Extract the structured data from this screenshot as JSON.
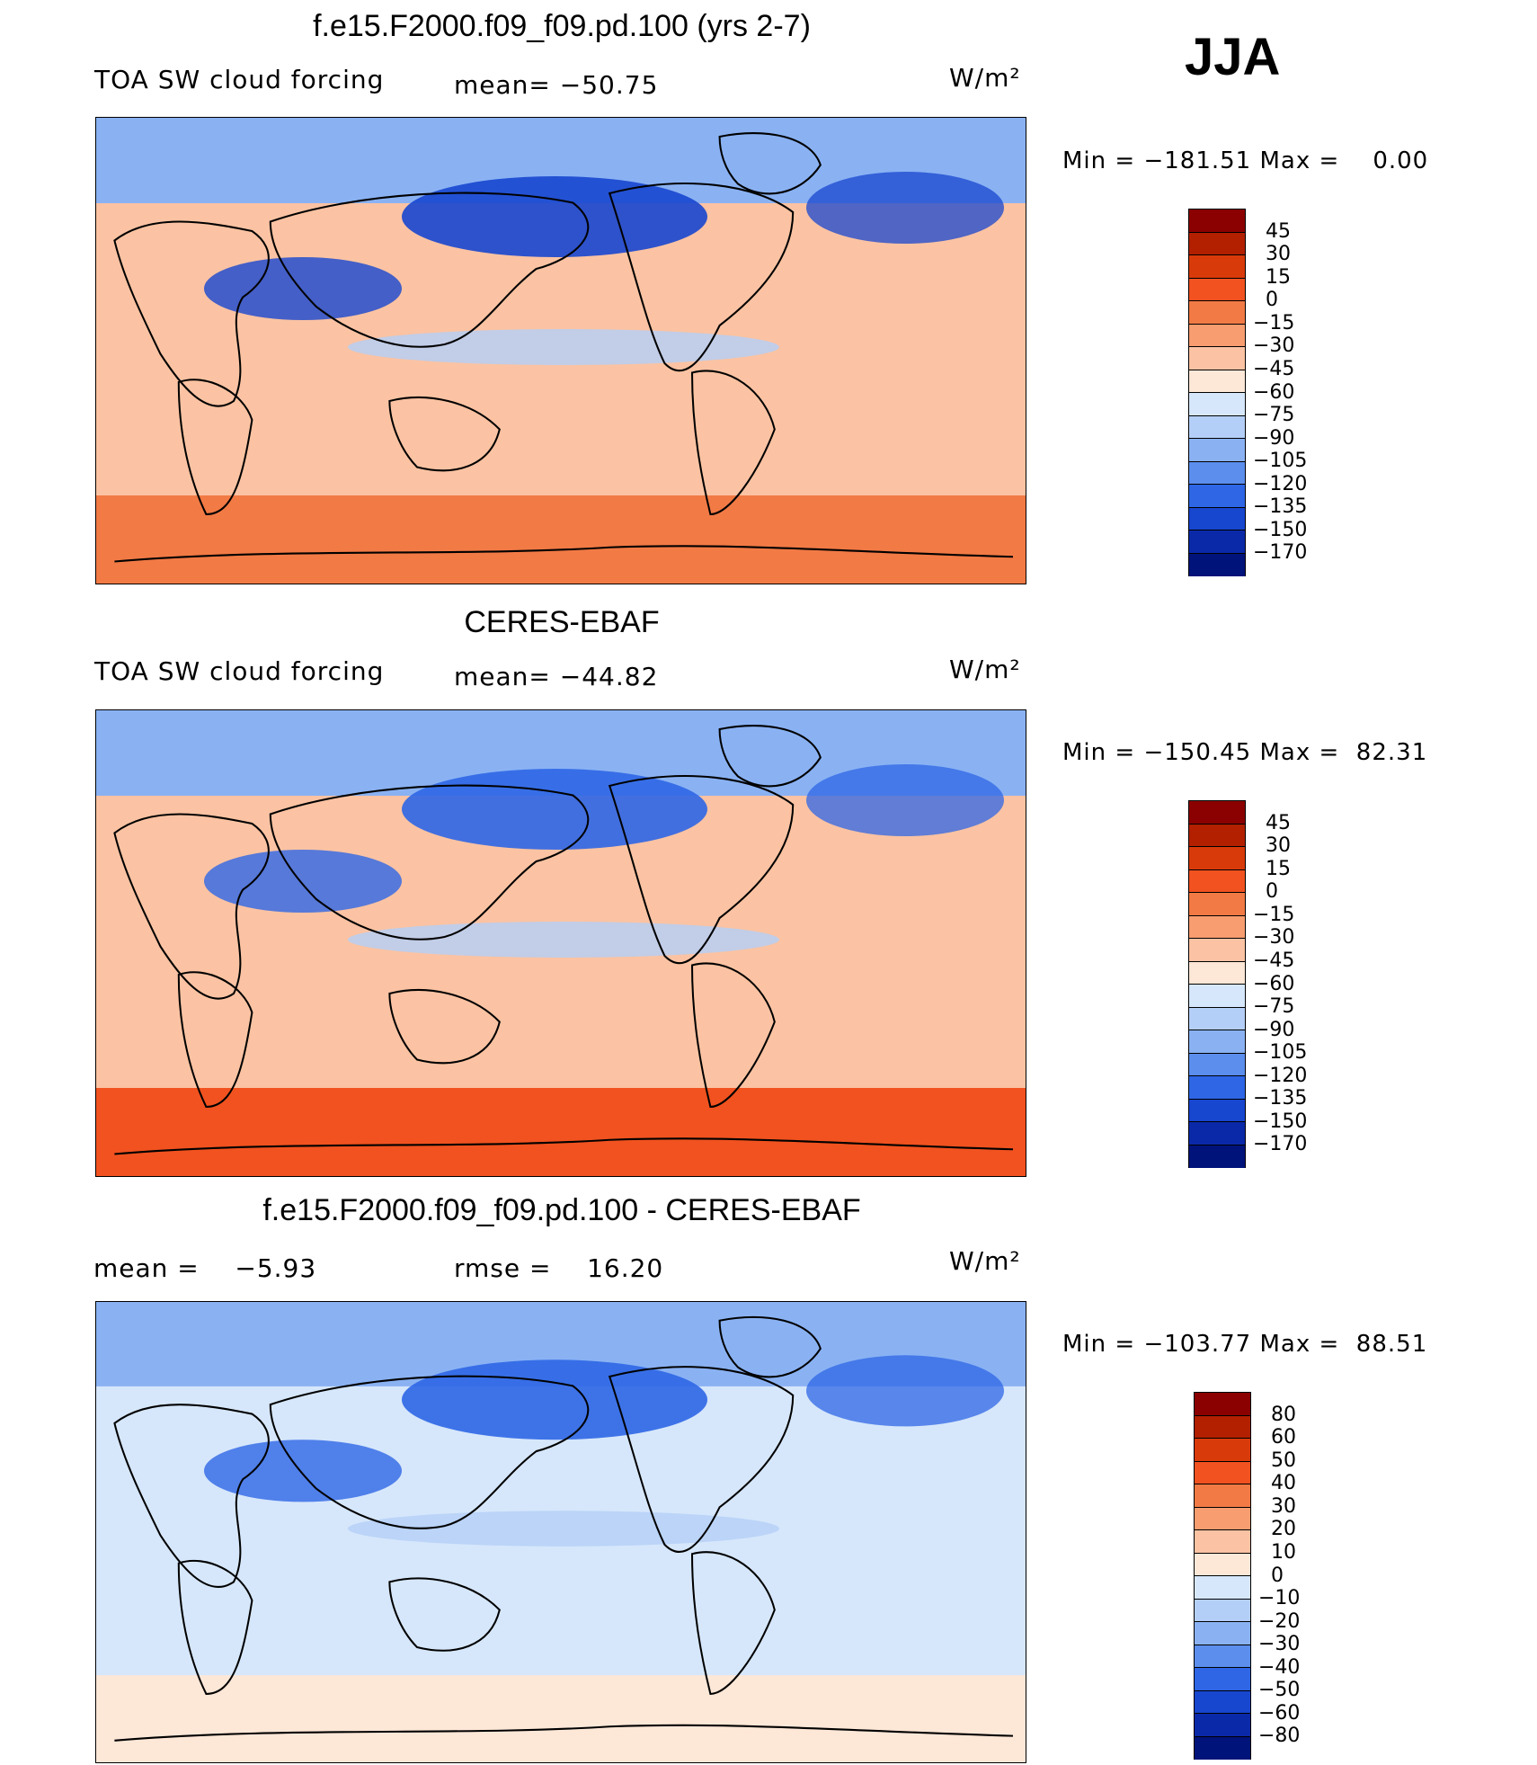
{
  "season": "JJA",
  "panels": [
    {
      "title": "f.e15.F2000.f09_f09.pd.100 (yrs 2-7)",
      "left_label": "TOA SW cloud forcing",
      "center_label": "mean= −50.75",
      "units": "W/m²",
      "minmax": "Min = −181.51 Max =    0.00",
      "colorbar": {
        "labels": [
          "45",
          "30",
          "15",
          "0",
          "−15",
          "−30",
          "−45",
          "−60",
          "−75",
          "−90",
          "−105",
          "−120",
          "−135",
          "−150",
          "−170"
        ],
        "colors": [
          "#8b0000",
          "#b22000",
          "#d93a0a",
          "#f1521f",
          "#f27a45",
          "#f79d70",
          "#fbc3a3",
          "#fde7d7",
          "#d6e7fb",
          "#b4cff7",
          "#8ab2f3",
          "#5b8eed",
          "#2e66e6",
          "#1746cf",
          "#0a29a8",
          "#00137a"
        ]
      },
      "map_palette": {
        "ocean": "#fbc3a3",
        "polar": "#f27a45",
        "cloudy": "#1746cf"
      }
    },
    {
      "title": "CERES-EBAF",
      "left_label": "TOA SW cloud forcing",
      "center_label": "mean= −44.82",
      "units": "W/m²",
      "minmax": "Min = −150.45 Max =  82.31",
      "colorbar": {
        "labels": [
          "45",
          "30",
          "15",
          "0",
          "−15",
          "−30",
          "−45",
          "−60",
          "−75",
          "−90",
          "−105",
          "−120",
          "−135",
          "−150",
          "−170"
        ],
        "colors": [
          "#8b0000",
          "#b22000",
          "#d93a0a",
          "#f1521f",
          "#f27a45",
          "#f79d70",
          "#fbc3a3",
          "#fde7d7",
          "#d6e7fb",
          "#b4cff7",
          "#8ab2f3",
          "#5b8eed",
          "#2e66e6",
          "#1746cf",
          "#0a29a8",
          "#00137a"
        ]
      },
      "map_palette": {
        "ocean": "#fbc3a3",
        "polar": "#f1521f",
        "cloudy": "#2e66e6"
      }
    },
    {
      "title": "f.e15.F2000.f09_f09.pd.100 - CERES-EBAF",
      "left_label": "mean =    −5.93",
      "center_label": "rmse =    16.20",
      "units": "W/m²",
      "minmax": "Min = −103.77 Max =  88.51",
      "colorbar": {
        "labels": [
          "80",
          "60",
          "50",
          "40",
          "30",
          "20",
          "10",
          "0",
          "−10",
          "−20",
          "−30",
          "−40",
          "−50",
          "−60",
          "−80"
        ],
        "colors": [
          "#8b0000",
          "#b22000",
          "#d93a0a",
          "#f1521f",
          "#f27a45",
          "#f79d70",
          "#fbc3a3",
          "#fde7d7",
          "#d6e7fb",
          "#b4cff7",
          "#8ab2f3",
          "#5b8eed",
          "#2e66e6",
          "#1746cf",
          "#0a29a8",
          "#00137a"
        ]
      },
      "map_palette": {
        "ocean": "#d6e7fb",
        "polar": "#fde7d7",
        "cloudy": "#2e66e6"
      }
    }
  ]
}
